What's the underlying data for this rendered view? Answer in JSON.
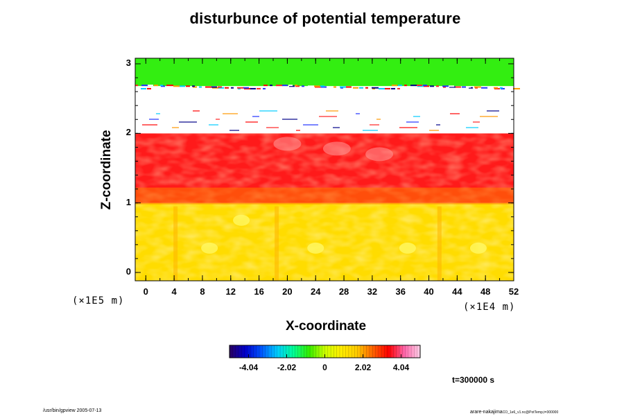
{
  "chart_data": {
    "type": "heatmap",
    "title": "disturbunce of potential temperature",
    "xlabel": "X-coordinate",
    "ylabel": "Z-coordinate",
    "x_scale_label": "(×1E4 m)",
    "y_scale_label": "(×1E5 m)",
    "xlim": [
      -1.5,
      52
    ],
    "ylim": [
      -0.12,
      3.08
    ],
    "x_ticks": [
      "0",
      "4",
      "8",
      "12",
      "16",
      "20",
      "24",
      "28",
      "32",
      "36",
      "40",
      "44",
      "48",
      "52"
    ],
    "y_ticks": [
      "0",
      "1",
      "2",
      "3"
    ],
    "bands": [
      {
        "z_from": -0.12,
        "z_to": 1.0,
        "level": "~2.2 (yellow)",
        "color": "#ffdc00"
      },
      {
        "z_from": 1.0,
        "z_to": 2.0,
        "level": "~4.0 (red)",
        "color": "#ff1a1a"
      },
      {
        "z_from": 2.0,
        "z_to": 2.68,
        "level": "undefined (white)",
        "color": "#ffffff"
      },
      {
        "z_from": 2.68,
        "z_to": 3.08,
        "level": "~0.8 (green)",
        "color": "#33ee11"
      }
    ],
    "colorbar": {
      "ticks": [
        "-4.04",
        "-2.02",
        "0",
        "2.02",
        "4.04"
      ],
      "tick_values": [
        -4.04,
        -2.02,
        0,
        2.02,
        4.04
      ],
      "range": [
        -5.05,
        5.05
      ],
      "colors": [
        "#2a0060",
        "#0000cc",
        "#0055ff",
        "#00ccff",
        "#00ff99",
        "#33ee00",
        "#ccff00",
        "#ffee00",
        "#ffcc00",
        "#ff6600",
        "#ff0000",
        "#ff66aa",
        "#ffd0e8"
      ]
    },
    "time_label": "t=300000 s"
  },
  "footer": {
    "left": "/usr/bin/gpview 2005-07-13",
    "right_main": "arare-nakajima",
    "right_small": "CO_1e6_v1.nc@PotTemp,t=300000"
  }
}
